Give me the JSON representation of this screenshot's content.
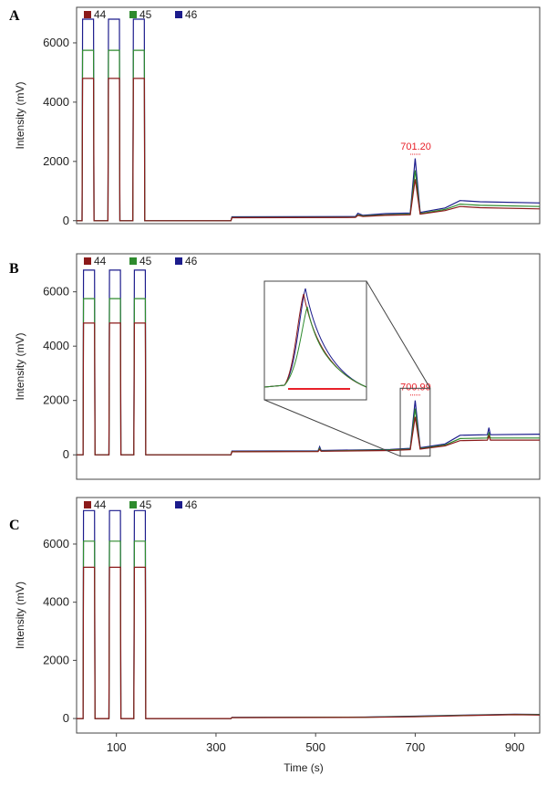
{
  "chart_data": [
    {
      "type": "line",
      "panel_label": "A",
      "ylabel": "Intensity (mV)",
      "xlabel": "",
      "xlim": [
        20,
        950
      ],
      "ylim": [
        -100,
        7200
      ],
      "yticks": [
        0,
        2000,
        4000,
        6000
      ],
      "xticks": [],
      "legend": [
        "44",
        "45",
        "46"
      ],
      "colors": {
        "44": "#8b1a1a",
        "45": "#2e8b2e",
        "46": "#1c1c8c"
      },
      "pulses": [
        [
          31,
          55
        ],
        [
          83,
          107
        ],
        [
          133,
          157
        ]
      ],
      "pulse_heights": {
        "44": 4800,
        "45": 5750,
        "46": 6800
      },
      "baseline": {
        "x": [
          157,
          330,
          332,
          580,
          585,
          595,
          640,
          690,
          700,
          710,
          760,
          790,
          830,
          950
        ],
        "46": [
          0,
          0,
          130,
          140,
          250,
          180,
          240,
          260,
          2100,
          280,
          430,
          680,
          640,
          600
        ],
        "45": [
          0,
          0,
          110,
          120,
          200,
          160,
          200,
          220,
          1700,
          240,
          380,
          560,
          520,
          480
        ],
        "44": [
          0,
          0,
          100,
          110,
          180,
          140,
          180,
          200,
          1400,
          220,
          340,
          480,
          440,
          400
        ]
      },
      "peak_annotation": {
        "x": 701.2,
        "y": 2150,
        "label": "701.20"
      }
    },
    {
      "type": "line",
      "panel_label": "B",
      "ylabel": "Intensity (mV)",
      "xlabel": "",
      "xlim": [
        20,
        950
      ],
      "ylim": [
        -900,
        7400
      ],
      "yticks": [
        0,
        2000,
        4000,
        6000
      ],
      "xticks": [],
      "legend": [
        "44",
        "45",
        "46"
      ],
      "colors": {
        "44": "#8b1a1a",
        "45": "#2e8b2e",
        "46": "#1c1c8c"
      },
      "pulses": [
        [
          33,
          57
        ],
        [
          85,
          109
        ],
        [
          135,
          159
        ]
      ],
      "pulse_heights": {
        "44": 4850,
        "45": 5750,
        "46": 6800
      },
      "baseline": {
        "x": [
          159,
          330,
          332,
          505,
          508,
          511,
          650,
          690,
          700,
          710,
          760,
          790,
          845,
          848,
          851,
          950
        ],
        "46": [
          0,
          0,
          140,
          150,
          300,
          160,
          200,
          240,
          2000,
          260,
          400,
          720,
          740,
          1000,
          740,
          760
        ],
        "45": [
          0,
          0,
          120,
          130,
          240,
          140,
          180,
          210,
          1700,
          230,
          360,
          600,
          620,
          800,
          620,
          620
        ],
        "44": [
          0,
          0,
          110,
          120,
          200,
          130,
          160,
          190,
          1400,
          210,
          330,
          520,
          540,
          700,
          540,
          540
        ]
      },
      "peak_annotation": {
        "x": 700.99,
        "y": 2100,
        "label": "700.99"
      },
      "inset_region": {
        "x": [
          670,
          730
        ],
        "y": [
          -50,
          2450
        ]
      }
    },
    {
      "type": "line",
      "panel_label": "C",
      "ylabel": "Intensity (mV)",
      "xlabel": "Time (s)",
      "xlim": [
        20,
        950
      ],
      "ylim": [
        -500,
        7600
      ],
      "yticks": [
        0,
        2000,
        4000,
        6000
      ],
      "xticks": [
        100,
        300,
        500,
        700,
        900
      ],
      "legend": [
        "44",
        "45",
        "46"
      ],
      "colors": {
        "44": "#8b1a1a",
        "45": "#2e8b2e",
        "46": "#1c1c8c"
      },
      "pulses": [
        [
          33,
          57
        ],
        [
          85,
          109
        ],
        [
          135,
          159
        ]
      ],
      "pulse_heights": {
        "44": 5200,
        "45": 6100,
        "46": 7150
      },
      "baseline": {
        "x": [
          159,
          330,
          332,
          600,
          700,
          800,
          900,
          950
        ],
        "46": [
          0,
          0,
          40,
          50,
          80,
          120,
          150,
          140
        ],
        "45": [
          0,
          0,
          35,
          45,
          70,
          110,
          140,
          130
        ],
        "44": [
          0,
          0,
          30,
          40,
          60,
          100,
          130,
          120
        ]
      }
    }
  ]
}
